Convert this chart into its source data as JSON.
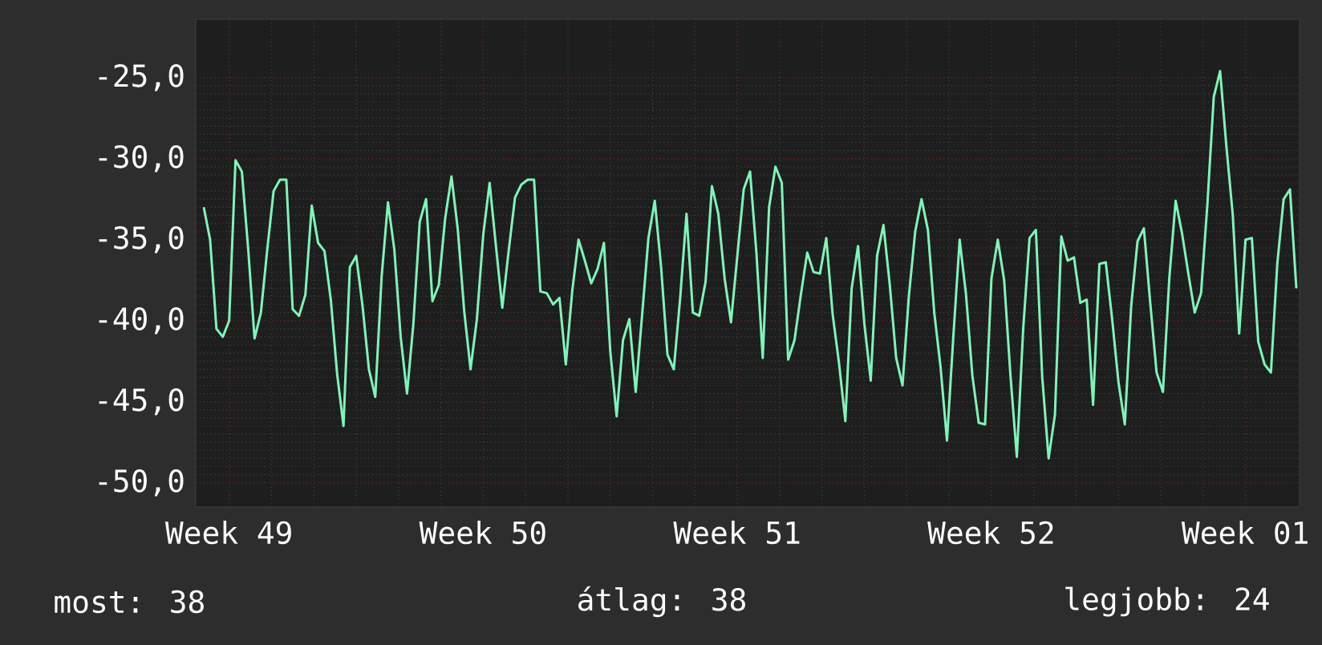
{
  "chart_data": {
    "type": "line",
    "categories": [
      null,
      null,
      null,
      null,
      "Week 49",
      null,
      null,
      null,
      null,
      null,
      null,
      null,
      null,
      null,
      null,
      null,
      null,
      null,
      null,
      null,
      null,
      null,
      null,
      null,
      null,
      null,
      null,
      null,
      null,
      null,
      null,
      null,
      null,
      null,
      null,
      null,
      null,
      null,
      null,
      null,
      null,
      null,
      null,
      null,
      "Week 50",
      null,
      null,
      null,
      null,
      null,
      null,
      null,
      null,
      null,
      null,
      null,
      null,
      null,
      null,
      null,
      null,
      null,
      null,
      null,
      null,
      null,
      null,
      null,
      null,
      null,
      null,
      null,
      null,
      null,
      null,
      null,
      null,
      null,
      null,
      null,
      null,
      null,
      null,
      null,
      "Week 51",
      null,
      null,
      null,
      null,
      null,
      null,
      null,
      null,
      null,
      null,
      null,
      null,
      null,
      null,
      null,
      null,
      null,
      null,
      null,
      null,
      null,
      null,
      null,
      null,
      null,
      null,
      null,
      null,
      null,
      null,
      null,
      null,
      null,
      null,
      null,
      null,
      null,
      null,
      null,
      "Week 52",
      null,
      null,
      null,
      null,
      null,
      null,
      null,
      null,
      null,
      null,
      null,
      null,
      null,
      null,
      null,
      null,
      null,
      null,
      null,
      null,
      null,
      null,
      null,
      null,
      null,
      null,
      null,
      null,
      null,
      null,
      null,
      null,
      null,
      null,
      null,
      null,
      null,
      null,
      null,
      "Week 01",
      null,
      null,
      null,
      null,
      null,
      null,
      null,
      null
    ],
    "series": [
      {
        "color": "#7ef5b8",
        "values": [
          -33.0,
          -35.0,
          -40.5,
          -41.0,
          -40.0,
          -30.1,
          -30.8,
          -35.6,
          -41.1,
          -39.5,
          -35.6,
          -32.0,
          -31.3,
          -31.3,
          -39.3,
          -39.7,
          -38.4,
          -32.9,
          -35.2,
          -35.7,
          -38.7,
          -43.3,
          -46.5,
          -36.7,
          -36.0,
          -39.1,
          -43.0,
          -44.7,
          -37.3,
          -32.7,
          -35.6,
          -41.0,
          -44.5,
          -40.2,
          -33.9,
          -32.5,
          -38.8,
          -37.8,
          -33.7,
          -31.1,
          -34.4,
          -39.4,
          -43.0,
          -39.9,
          -34.7,
          -31.5,
          -35.4,
          -39.2,
          -35.7,
          -32.4,
          -31.6,
          -31.3,
          -31.3,
          -38.2,
          -38.3,
          -39.0,
          -38.6,
          -42.7,
          -38.2,
          -35.0,
          -36.3,
          -37.7,
          -36.8,
          -35.2,
          -41.9,
          -45.9,
          -41.2,
          -39.9,
          -44.4,
          -39.7,
          -34.9,
          -32.6,
          -36.7,
          -42.1,
          -43.0,
          -38.6,
          -33.4,
          -39.5,
          -39.7,
          -37.6,
          -31.7,
          -33.4,
          -37.4,
          -40.1,
          -36.0,
          -31.9,
          -30.8,
          -35.8,
          -42.3,
          -33.0,
          -30.5,
          -31.5,
          -42.4,
          -41.2,
          -38.4,
          -35.8,
          -37.0,
          -37.1,
          -34.9,
          -39.6,
          -42.6,
          -46.2,
          -38.0,
          -35.4,
          -40.2,
          -43.7,
          -36.0,
          -34.1,
          -37.8,
          -42.3,
          -44.0,
          -38.5,
          -34.5,
          -32.5,
          -34.4,
          -39.5,
          -42.9,
          -47.4,
          -41.0,
          -35.0,
          -38.4,
          -43.4,
          -46.3,
          -46.4,
          -37.4,
          -35.0,
          -37.5,
          -43.4,
          -48.4,
          -40.5,
          -34.9,
          -34.4,
          -43.5,
          -48.5,
          -45.8,
          -34.8,
          -36.3,
          -36.1,
          -38.9,
          -38.7,
          -45.2,
          -36.5,
          -36.4,
          -39.9,
          -43.8,
          -46.4,
          -39.1,
          -35.1,
          -34.3,
          -38.9,
          -43.2,
          -44.4,
          -37.4,
          -32.6,
          -34.6,
          -37.1,
          -39.5,
          -38.3,
          -32.8,
          -26.2,
          -24.6,
          -29.3,
          -33.5,
          -40.8,
          -35.0,
          -34.9,
          -41.3,
          -42.7,
          -43.2,
          -36.5,
          -32.5,
          -31.9,
          -38.0
        ]
      }
    ],
    "ylim": [
      -51.5,
      -21.4
    ],
    "yticks": [
      {
        "value": -50,
        "label": "-50,0"
      },
      {
        "value": -45,
        "label": "-45,0"
      },
      {
        "value": -40,
        "label": "-40,0"
      },
      {
        "value": -35,
        "label": "-35,0"
      },
      {
        "value": -30,
        "label": "-30,0"
      },
      {
        "value": -25,
        "label": "-25,0"
      }
    ],
    "grid": true,
    "marker": "none",
    "line_style": "solid",
    "legend": false,
    "annotations": [
      "most: 38",
      "átlag: 38",
      "legjobb: 24"
    ]
  }
}
